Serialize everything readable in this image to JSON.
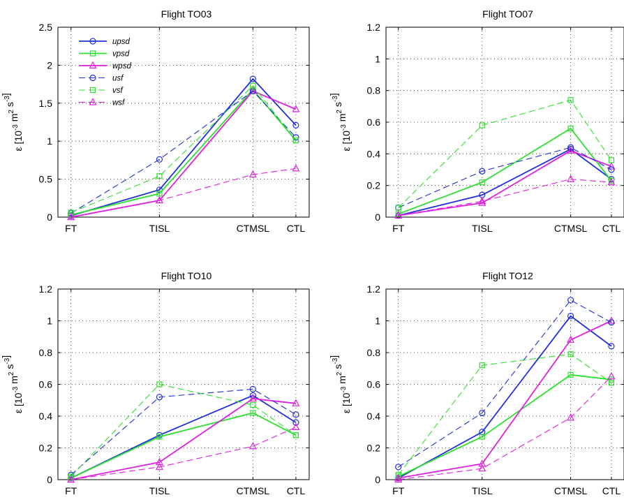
{
  "chart_data": [
    {
      "type": "line",
      "title": "Flight TO03",
      "categories": [
        "FT",
        "TISL",
        "CTMSL",
        "CTL"
      ],
      "ylim": [
        0,
        2.5
      ],
      "yticks": [
        0,
        0.5,
        1,
        1.5,
        2,
        2.5
      ],
      "ytick_labels": [
        "0",
        "0.5",
        "1",
        "1.5",
        "2",
        "2.5"
      ],
      "ylabel": {
        "eps": "ε",
        "open": "[10",
        "exp1": "-3",
        "m": "m",
        "exp2": "2",
        "s": "s",
        "exp3": "-3",
        "close": "]"
      },
      "grid": true,
      "legend": "top-left",
      "series": [
        {
          "name": "upsd",
          "values": [
            0.02,
            0.36,
            1.82,
            1.21
          ]
        },
        {
          "name": "vpsd",
          "values": [
            0.03,
            0.31,
            1.68,
            1.01
          ]
        },
        {
          "name": "wpsd",
          "values": [
            0.0,
            0.22,
            1.66,
            1.42
          ]
        },
        {
          "name": "usf",
          "values": [
            0.05,
            0.76,
            1.66,
            1.05
          ]
        },
        {
          "name": "vsf",
          "values": [
            0.06,
            0.54,
            1.73,
            1.01
          ]
        },
        {
          "name": "wsf",
          "values": [
            0.0,
            0.22,
            0.56,
            0.64
          ]
        }
      ]
    },
    {
      "type": "line",
      "title": "Flight TO07",
      "categories": [
        "FT",
        "TISL",
        "CTMSL",
        "CTL"
      ],
      "ylim": [
        0,
        1.2
      ],
      "yticks": [
        0,
        0.2,
        0.4,
        0.6,
        0.8,
        1,
        1.2
      ],
      "ytick_labels": [
        "0",
        "0.2",
        "0.4",
        "0.6",
        "0.8",
        "1",
        "1.2"
      ],
      "ylabel": {
        "eps": "ε",
        "open": "[10",
        "exp1": "-3",
        "m": "m",
        "exp2": "2",
        "s": "s",
        "exp3": "-3",
        "close": "]"
      },
      "grid": true,
      "series": [
        {
          "name": "upsd",
          "values": [
            0.01,
            0.14,
            0.43,
            0.24
          ]
        },
        {
          "name": "vpsd",
          "values": [
            0.02,
            0.22,
            0.56,
            0.23
          ]
        },
        {
          "name": "wpsd",
          "values": [
            0.01,
            0.09,
            0.42,
            0.32
          ]
        },
        {
          "name": "usf",
          "values": [
            0.06,
            0.29,
            0.44,
            0.3
          ]
        },
        {
          "name": "vsf",
          "values": [
            0.06,
            0.58,
            0.74,
            0.36
          ]
        },
        {
          "name": "wsf",
          "values": [
            0.01,
            0.1,
            0.24,
            0.22
          ]
        }
      ]
    },
    {
      "type": "line",
      "title": "Flight TO10",
      "categories": [
        "FT",
        "TISL",
        "CTMSL",
        "CTL"
      ],
      "ylim": [
        0,
        1.2
      ],
      "yticks": [
        0,
        0.2,
        0.4,
        0.6,
        0.8,
        1,
        1.2
      ],
      "ytick_labels": [
        "0",
        "0.2",
        "0.4",
        "0.6",
        "0.8",
        "1",
        "1.2"
      ],
      "ylabel": {
        "eps": "ε",
        "open": "[10",
        "exp1": "-3",
        "m": "m",
        "exp2": "2",
        "s": "s",
        "exp3": "-3",
        "close": "]"
      },
      "grid": true,
      "series": [
        {
          "name": "upsd",
          "values": [
            0.01,
            0.28,
            0.53,
            0.36
          ]
        },
        {
          "name": "vpsd",
          "values": [
            0.01,
            0.27,
            0.42,
            0.28
          ]
        },
        {
          "name": "wpsd",
          "values": [
            0.0,
            0.11,
            0.51,
            0.48
          ]
        },
        {
          "name": "usf",
          "values": [
            0.03,
            0.52,
            0.57,
            0.41
          ]
        },
        {
          "name": "vsf",
          "values": [
            0.02,
            0.6,
            0.47,
            0.28
          ]
        },
        {
          "name": "wsf",
          "values": [
            0.0,
            0.08,
            0.21,
            0.33
          ]
        }
      ]
    },
    {
      "type": "line",
      "title": "Flight TO12",
      "categories": [
        "FT",
        "TISL",
        "CTMSL",
        "CTL"
      ],
      "ylim": [
        0,
        1.2
      ],
      "yticks": [
        0,
        0.2,
        0.4,
        0.6,
        0.8,
        1,
        1.2
      ],
      "ytick_labels": [
        "0",
        "0.2",
        "0.4",
        "0.6",
        "0.8",
        "1",
        "1.2"
      ],
      "ylabel": {
        "eps": "ε",
        "open": "[10",
        "exp1": "-3",
        "m": "m",
        "exp2": "2",
        "s": "s",
        "exp3": "-3",
        "close": "]"
      },
      "grid": true,
      "series": [
        {
          "name": "upsd",
          "values": [
            0.01,
            0.3,
            1.03,
            0.84
          ]
        },
        {
          "name": "vpsd",
          "values": [
            0.02,
            0.27,
            0.66,
            0.63
          ]
        },
        {
          "name": "wpsd",
          "values": [
            0.01,
            0.1,
            0.88,
            1.0
          ]
        },
        {
          "name": "usf",
          "values": [
            0.08,
            0.42,
            1.13,
            0.99
          ]
        },
        {
          "name": "vsf",
          "values": [
            0.03,
            0.72,
            0.79,
            0.61
          ]
        },
        {
          "name": "wsf",
          "values": [
            0.0,
            0.07,
            0.39,
            0.65
          ]
        }
      ]
    }
  ],
  "series_style": {
    "upsd": {
      "color": "#1f2fd9",
      "marker": "circle",
      "dashed": false
    },
    "vpsd": {
      "color": "#2ee02e",
      "marker": "square",
      "dashed": false
    },
    "wpsd": {
      "color": "#e020e0",
      "marker": "triangle",
      "dashed": false
    },
    "usf": {
      "color": "#1f2fd9",
      "marker": "circle",
      "dashed": true
    },
    "vsf": {
      "color": "#2ee02e",
      "marker": "square",
      "dashed": true
    },
    "wsf": {
      "color": "#e020e0",
      "marker": "triangle",
      "dashed": true
    }
  }
}
